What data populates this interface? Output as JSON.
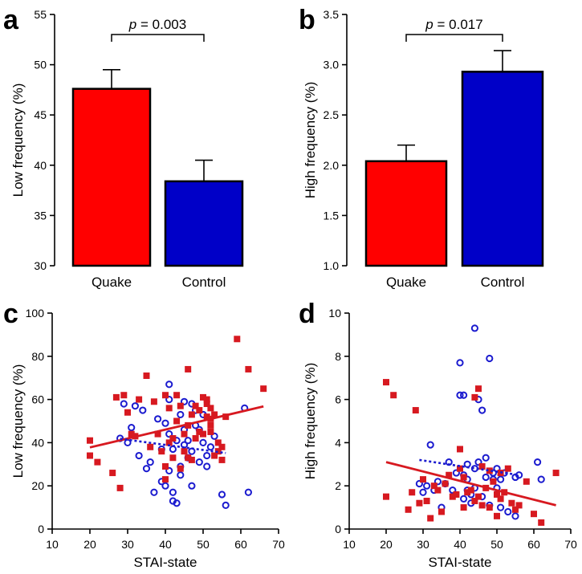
{
  "colors": {
    "quake": "#ff0000",
    "control": "#0000c8",
    "scatter_red": "#d71920",
    "scatter_blue": "#1b1bcf"
  },
  "chart_data": [
    {
      "panel": "a",
      "type": "bar",
      "categories": [
        "Quake",
        "Control"
      ],
      "values": [
        47.6,
        38.4
      ],
      "errors": [
        1.9,
        2.1
      ],
      "ylabel": "Low frequency (%)",
      "ylim": [
        30,
        55
      ],
      "yticks": [
        "30",
        "35",
        "40",
        "45",
        "50",
        "55"
      ],
      "bracket": {
        "p_label": "p",
        "p_value": "= 0.003"
      }
    },
    {
      "panel": "b",
      "type": "bar",
      "categories": [
        "Quake",
        "Control"
      ],
      "values": [
        2.04,
        2.93
      ],
      "errors": [
        0.16,
        0.21
      ],
      "ylabel": "High frequency (%)",
      "ylim": [
        1.0,
        3.5
      ],
      "yticks": [
        "1.0",
        "1.5",
        "2.0",
        "2.5",
        "3.0",
        "3.5"
      ],
      "bracket": {
        "p_label": "p",
        "p_value": "= 0.017"
      }
    },
    {
      "panel": "c",
      "type": "scatter",
      "xlabel": "STAI-state",
      "ylabel": "Low frequency (%)",
      "xlim": [
        10,
        70
      ],
      "ylim": [
        0,
        100
      ],
      "xticks": [
        "10",
        "20",
        "30",
        "40",
        "50",
        "60",
        "70"
      ],
      "yticks": [
        "0",
        "20",
        "40",
        "60",
        "80",
        "100"
      ],
      "series": [
        {
          "name": "Quake",
          "marker": "square",
          "x": [
            20,
            20,
            22,
            26,
            27,
            28,
            29,
            30,
            31,
            32,
            33,
            35,
            36,
            37,
            38,
            39,
            40,
            40,
            40,
            41,
            41,
            42,
            42,
            43,
            43,
            44,
            44,
            45,
            45,
            46,
            46,
            46,
            47,
            47,
            48,
            48,
            49,
            49,
            50,
            50,
            51,
            51,
            51,
            52,
            52,
            52,
            52,
            53,
            53,
            54,
            54,
            55,
            55,
            56,
            59,
            62,
            66
          ],
          "y": [
            41,
            34,
            31,
            26,
            61,
            19,
            62,
            54,
            44,
            43,
            60,
            71,
            38,
            59,
            44,
            36,
            62,
            29,
            23,
            40,
            56,
            42,
            33,
            62,
            50,
            28,
            57,
            44,
            36,
            74,
            48,
            33,
            53,
            32,
            57,
            42,
            55,
            45,
            61,
            44,
            52,
            60,
            58,
            56,
            51,
            48,
            45,
            53,
            34,
            40,
            36,
            38,
            32,
            52,
            88,
            74,
            65
          ],
          "fit": [
            [
              20,
              37.8
            ],
            [
              66,
              56.8
            ]
          ]
        },
        {
          "name": "Control",
          "marker": "circle",
          "x": [
            28,
            29,
            30,
            31,
            32,
            33,
            34,
            35,
            36,
            37,
            38,
            39,
            39,
            40,
            40,
            41,
            41,
            41,
            41,
            42,
            42,
            42,
            43,
            43,
            44,
            44,
            44,
            45,
            45,
            45,
            46,
            46,
            47,
            47,
            47,
            48,
            48,
            49,
            49,
            50,
            50,
            51,
            51,
            52,
            53,
            55,
            56,
            61,
            62
          ],
          "y": [
            42,
            58,
            40,
            47,
            57,
            34,
            55,
            28,
            31,
            17,
            51,
            37,
            22,
            49,
            20,
            67,
            60,
            44,
            27,
            17,
            13,
            37,
            12,
            41,
            53,
            29,
            25,
            59,
            46,
            39,
            33,
            41,
            36,
            58,
            20,
            55,
            48,
            46,
            31,
            53,
            40,
            29,
            34,
            38,
            43,
            16,
            11,
            56,
            17
          ],
          "fit": [
            [
              28,
              41.8
            ],
            [
              56,
              35.2
            ]
          ]
        }
      ]
    },
    {
      "panel": "d",
      "type": "scatter",
      "xlabel": "STAI-state",
      "ylabel": "High frequency (%)",
      "xlim": [
        10,
        70
      ],
      "ylim": [
        0,
        10
      ],
      "xticks": [
        "10",
        "20",
        "30",
        "40",
        "50",
        "60",
        "70"
      ],
      "yticks": [
        "0",
        "2",
        "4",
        "6",
        "8",
        "10"
      ],
      "series": [
        {
          "name": "Quake",
          "marker": "square",
          "x": [
            20,
            20,
            22,
            26,
            27,
            28,
            29,
            30,
            31,
            32,
            33,
            34,
            35,
            36,
            37,
            38,
            39,
            40,
            40,
            41,
            41,
            42,
            43,
            44,
            44,
            45,
            45,
            46,
            46,
            47,
            48,
            48,
            49,
            50,
            50,
            51,
            51,
            52,
            53,
            54,
            55,
            56,
            58,
            60,
            62,
            66
          ],
          "y": [
            6.8,
            1.5,
            6.2,
            0.9,
            1.7,
            5.5,
            1.2,
            2.3,
            1.3,
            0.5,
            2.0,
            1.8,
            0.8,
            2.1,
            2.5,
            1.5,
            1.6,
            3.7,
            2.8,
            1.0,
            2.4,
            1.7,
            1.8,
            1.3,
            6.1,
            6.5,
            1.5,
            2.9,
            1.1,
            1.9,
            2.7,
            1.0,
            2.2,
            1.6,
            0.6,
            2.6,
            1.4,
            1.7,
            2.8,
            1.2,
            0.9,
            1.1,
            2.2,
            0.7,
            0.3,
            2.6
          ],
          "fit": [
            [
              20,
              3.1
            ],
            [
              66,
              1.1
            ]
          ]
        },
        {
          "name": "Control",
          "marker": "circle",
          "x": [
            29,
            30,
            31,
            32,
            33,
            34,
            35,
            36,
            37,
            38,
            39,
            40,
            40,
            41,
            41,
            41,
            42,
            42,
            42,
            43,
            43,
            44,
            44,
            44,
            45,
            45,
            46,
            46,
            47,
            47,
            48,
            48,
            49,
            49,
            50,
            50,
            51,
            51,
            52,
            53,
            55,
            55,
            56,
            61,
            62
          ],
          "y": [
            2.1,
            1.7,
            2.0,
            3.9,
            1.8,
            2.2,
            1.0,
            2.1,
            3.1,
            1.8,
            2.6,
            7.7,
            6.2,
            6.2,
            2.5,
            1.4,
            2.3,
            3.0,
            1.8,
            1.6,
            1.2,
            9.3,
            2.8,
            1.9,
            6.0,
            3.1,
            5.5,
            1.5,
            3.3,
            2.4,
            7.9,
            1.1,
            2.3,
            2.6,
            1.9,
            2.8,
            1.0,
            2.3,
            2.6,
            0.8,
            2.4,
            0.6,
            2.5,
            3.1,
            2.3
          ],
          "fit": [
            [
              29,
              3.2
            ],
            [
              56,
              2.5
            ]
          ]
        }
      ]
    }
  ]
}
